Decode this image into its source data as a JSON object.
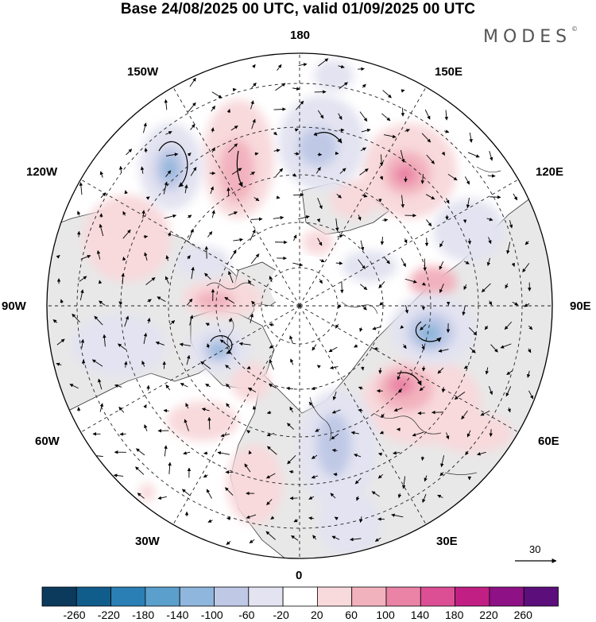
{
  "title": "Base 24/08/2025 00 UTC, valid 01/09/2025 00 UTC",
  "brand": {
    "name": "MODES",
    "mark": "©"
  },
  "longitude_labels": {
    "lon_180": "180",
    "lon_150e": "150E",
    "lon_120e": "120E",
    "lon_90e": "90E",
    "lon_60e": "60E",
    "lon_30e": "30E",
    "lon_0": "0",
    "lon_30w": "30W",
    "lon_60w": "60W",
    "lon_90w": "90W",
    "lon_120w": "120W",
    "lon_150w": "150W"
  },
  "vector_key": {
    "value": "30"
  },
  "colorbar": {
    "colors": [
      "#0b3a5c",
      "#105d8c",
      "#2a7fb5",
      "#5b9fcd",
      "#8fb6dc",
      "#bfc9e6",
      "#e3e3f1",
      "#ffffff",
      "#f8d9dc",
      "#f2b2bd",
      "#ea83a6",
      "#dd4f94",
      "#c21f84",
      "#8e1185",
      "#5c0e7a"
    ],
    "labels": [
      "-260",
      "-220",
      "-180",
      "-140",
      "-100",
      "-60",
      "-20",
      "20",
      "60",
      "100",
      "140",
      "180",
      "220",
      "260"
    ]
  }
}
